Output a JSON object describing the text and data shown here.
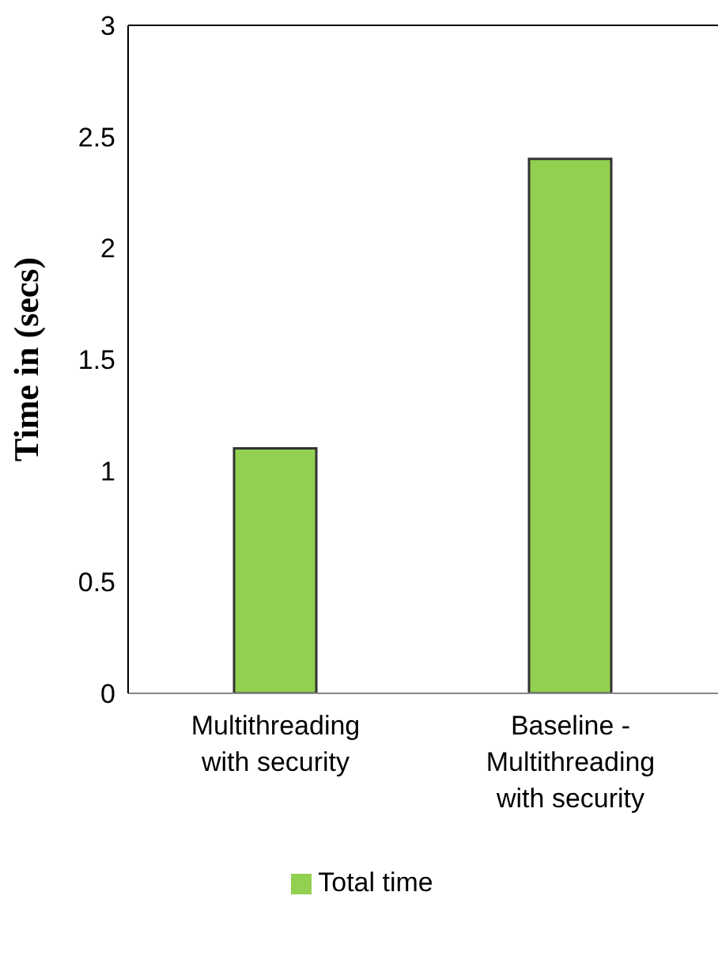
{
  "chart_data": {
    "type": "bar",
    "ylabel": "Time in (secs)",
    "categories": [
      "Multithreading with security",
      "Baseline - Multithreading with security"
    ],
    "series": [
      {
        "name": "Total time",
        "color": "#92d050",
        "values": [
          1.1,
          2.4
        ]
      }
    ],
    "ylim": [
      0,
      3
    ],
    "yticks": [
      0,
      0.5,
      1,
      1.5,
      2,
      2.5,
      3
    ],
    "grid": false,
    "legend": "bottom"
  }
}
